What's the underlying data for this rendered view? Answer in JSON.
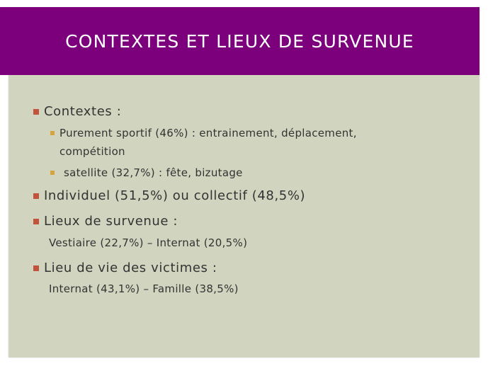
{
  "title": "CONTEXTES ET LIEUX DE SURVENUE",
  "colors": {
    "title_bar": "#7c007c",
    "slide_bg": "#d1d5bf",
    "bullet_level1": "#c3543b",
    "bullet_level2": "#d8a23c"
  },
  "content": {
    "contextes": "Contextes :",
    "sub_1_line_1": "Purement sportif (46%) : entrainement, déplacement,",
    "sub_1_line_2": "compétition",
    "sub_2": "satellite (32,7%) : fête, bizutage",
    "individuel": "Individuel (51,5%) ou collectif (48,5%)",
    "lieux": "Lieux de survenue :",
    "lieux_detail": "Vestiaire (22,7%) – Internat (20,5%)",
    "lieu_vie": "Lieu de vie des victimes :",
    "lieu_vie_detail": "Internat (43,1%) – Famille  (38,5%)"
  }
}
